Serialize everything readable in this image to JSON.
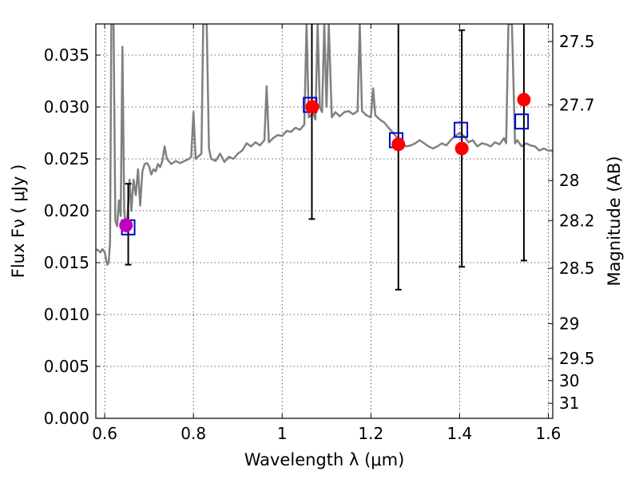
{
  "chart_data": {
    "type": "scatter",
    "xlabel": "Wavelength  λ (μm)",
    "ylabel": "Flux  Fν  ( μJy )",
    "y2label": "Magnitude (AB)",
    "xlim": [
      0.58,
      1.61
    ],
    "ylim": [
      0.0,
      0.038
    ],
    "grid": true,
    "x_ticks": [
      {
        "value": 0.6,
        "label": "0.6"
      },
      {
        "value": 0.8,
        "label": "0.8"
      },
      {
        "value": 1.0,
        "label": "1"
      },
      {
        "value": 1.2,
        "label": "1.2"
      },
      {
        "value": 1.4,
        "label": "1.4"
      },
      {
        "value": 1.6,
        "label": "1.6"
      }
    ],
    "y_ticks": [
      {
        "value": 0.0,
        "label": "0.000"
      },
      {
        "value": 0.005,
        "label": "0.005"
      },
      {
        "value": 0.01,
        "label": "0.010"
      },
      {
        "value": 0.015,
        "label": "0.015"
      },
      {
        "value": 0.02,
        "label": "0.020"
      },
      {
        "value": 0.025,
        "label": "0.025"
      },
      {
        "value": 0.03,
        "label": "0.030"
      },
      {
        "value": 0.035,
        "label": "0.035"
      }
    ],
    "y2_ticks": [
      {
        "magnitude": 27.5,
        "label": "27.5"
      },
      {
        "magnitude": 27.7,
        "label": "27.7"
      },
      {
        "magnitude": 28.0,
        "label": "28"
      },
      {
        "magnitude": 28.2,
        "label": "28.2"
      },
      {
        "magnitude": 28.5,
        "label": "28.5"
      },
      {
        "magnitude": 29.0,
        "label": "29"
      },
      {
        "magnitude": 29.5,
        "label": "29.5"
      },
      {
        "magnitude": 30.0,
        "label": "30"
      },
      {
        "magnitude": 31.0,
        "label": "31"
      }
    ],
    "model_spectrum": {
      "color": "#808080",
      "points": [
        [
          0.58,
          0.0163
        ],
        [
          0.585,
          0.0162
        ],
        [
          0.59,
          0.016
        ],
        [
          0.595,
          0.0163
        ],
        [
          0.6,
          0.016
        ],
        [
          0.603,
          0.0153
        ],
        [
          0.606,
          0.0148
        ],
        [
          0.609,
          0.015
        ],
        [
          0.612,
          0.017
        ],
        [
          0.615,
          0.038
        ],
        [
          0.62,
          0.038
        ],
        [
          0.624,
          0.019
        ],
        [
          0.628,
          0.0185
        ],
        [
          0.632,
          0.021
        ],
        [
          0.636,
          0.0195
        ],
        [
          0.64,
          0.0358
        ],
        [
          0.644,
          0.02
        ],
        [
          0.648,
          0.018
        ],
        [
          0.652,
          0.02
        ],
        [
          0.656,
          0.023
        ],
        [
          0.66,
          0.02
        ],
        [
          0.665,
          0.023
        ],
        [
          0.67,
          0.0215
        ],
        [
          0.675,
          0.024
        ],
        [
          0.68,
          0.0205
        ],
        [
          0.685,
          0.0238
        ],
        [
          0.69,
          0.0245
        ],
        [
          0.695,
          0.0246
        ],
        [
          0.7,
          0.0243
        ],
        [
          0.705,
          0.0235
        ],
        [
          0.71,
          0.024
        ],
        [
          0.715,
          0.0238
        ],
        [
          0.72,
          0.0245
        ],
        [
          0.725,
          0.0242
        ],
        [
          0.73,
          0.0248
        ],
        [
          0.735,
          0.0262
        ],
        [
          0.74,
          0.025
        ],
        [
          0.75,
          0.0245
        ],
        [
          0.76,
          0.0248
        ],
        [
          0.77,
          0.0246
        ],
        [
          0.78,
          0.0248
        ],
        [
          0.79,
          0.025
        ],
        [
          0.795,
          0.0252
        ],
        [
          0.8,
          0.0295
        ],
        [
          0.805,
          0.025
        ],
        [
          0.81,
          0.0252
        ],
        [
          0.818,
          0.0255
        ],
        [
          0.822,
          0.038
        ],
        [
          0.83,
          0.038
        ],
        [
          0.835,
          0.026
        ],
        [
          0.84,
          0.025
        ],
        [
          0.85,
          0.0248
        ],
        [
          0.86,
          0.0255
        ],
        [
          0.87,
          0.0247
        ],
        [
          0.88,
          0.0252
        ],
        [
          0.89,
          0.025
        ],
        [
          0.9,
          0.0255
        ],
        [
          0.91,
          0.0258
        ],
        [
          0.92,
          0.0265
        ],
        [
          0.93,
          0.0262
        ],
        [
          0.94,
          0.0266
        ],
        [
          0.95,
          0.0263
        ],
        [
          0.96,
          0.0268
        ],
        [
          0.965,
          0.032
        ],
        [
          0.97,
          0.0266
        ],
        [
          0.98,
          0.027
        ],
        [
          0.99,
          0.0273
        ],
        [
          1.0,
          0.0272
        ],
        [
          1.01,
          0.0277
        ],
        [
          1.02,
          0.0276
        ],
        [
          1.03,
          0.028
        ],
        [
          1.04,
          0.0278
        ],
        [
          1.05,
          0.0283
        ],
        [
          1.055,
          0.038
        ],
        [
          1.06,
          0.029
        ],
        [
          1.07,
          0.0294
        ],
        [
          1.075,
          0.0288
        ],
        [
          1.08,
          0.038
        ],
        [
          1.085,
          0.03
        ],
        [
          1.09,
          0.0295
        ],
        [
          1.095,
          0.038
        ],
        [
          1.1,
          0.03
        ],
        [
          1.105,
          0.038
        ],
        [
          1.112,
          0.029
        ],
        [
          1.12,
          0.0295
        ],
        [
          1.13,
          0.0291
        ],
        [
          1.14,
          0.0295
        ],
        [
          1.15,
          0.0296
        ],
        [
          1.16,
          0.0293
        ],
        [
          1.17,
          0.0296
        ],
        [
          1.175,
          0.038
        ],
        [
          1.18,
          0.0296
        ],
        [
          1.19,
          0.0292
        ],
        [
          1.2,
          0.029
        ],
        [
          1.205,
          0.0318
        ],
        [
          1.21,
          0.0292
        ],
        [
          1.22,
          0.0288
        ],
        [
          1.23,
          0.0285
        ],
        [
          1.24,
          0.028
        ],
        [
          1.25,
          0.0275
        ],
        [
          1.26,
          0.027
        ],
        [
          1.27,
          0.0265
        ],
        [
          1.28,
          0.0262
        ],
        [
          1.29,
          0.0263
        ],
        [
          1.3,
          0.0265
        ],
        [
          1.31,
          0.0268
        ],
        [
          1.32,
          0.0265
        ],
        [
          1.33,
          0.0262
        ],
        [
          1.34,
          0.026
        ],
        [
          1.35,
          0.0262
        ],
        [
          1.36,
          0.0265
        ],
        [
          1.37,
          0.0263
        ],
        [
          1.38,
          0.0268
        ],
        [
          1.39,
          0.0272
        ],
        [
          1.4,
          0.0275
        ],
        [
          1.41,
          0.0272
        ],
        [
          1.42,
          0.0266
        ],
        [
          1.43,
          0.0268
        ],
        [
          1.44,
          0.0262
        ],
        [
          1.45,
          0.0265
        ],
        [
          1.46,
          0.0264
        ],
        [
          1.47,
          0.0262
        ],
        [
          1.48,
          0.0266
        ],
        [
          1.49,
          0.0264
        ],
        [
          1.5,
          0.027
        ],
        [
          1.505,
          0.0265
        ],
        [
          1.51,
          0.038
        ],
        [
          1.518,
          0.038
        ],
        [
          1.525,
          0.0265
        ],
        [
          1.53,
          0.0268
        ],
        [
          1.54,
          0.0262
        ],
        [
          1.55,
          0.0265
        ],
        [
          1.56,
          0.0263
        ],
        [
          1.57,
          0.0262
        ],
        [
          1.58,
          0.0258
        ],
        [
          1.59,
          0.026
        ],
        [
          1.6,
          0.0258
        ],
        [
          1.61,
          0.0258
        ]
      ]
    },
    "error_bars": [
      {
        "x": 0.653,
        "low": 0.0148,
        "high": 0.0226
      },
      {
        "x": 1.067,
        "low": 0.0192,
        "high": 0.038
      },
      {
        "x": 1.262,
        "low": 0.0124,
        "high": 0.038
      },
      {
        "x": 1.405,
        "low": 0.0146,
        "high": 0.0374
      },
      {
        "x": 1.545,
        "low": 0.0152,
        "high": 0.038
      }
    ],
    "observed_points": {
      "colors": [
        "#bf00bf",
        "#ff0000",
        "#ff0000",
        "#ff0000",
        "#ff0000"
      ],
      "x": [
        0.648,
        1.068,
        1.262,
        1.405,
        1.545
      ],
      "y": [
        0.0186,
        0.03,
        0.0264,
        0.026,
        0.0307
      ]
    },
    "model_bandpass_points": {
      "color": "#0000cc",
      "x": [
        0.653,
        1.063,
        1.257,
        1.403,
        1.54
      ],
      "y": [
        0.0184,
        0.0302,
        0.0268,
        0.0278,
        0.0286
      ]
    }
  }
}
